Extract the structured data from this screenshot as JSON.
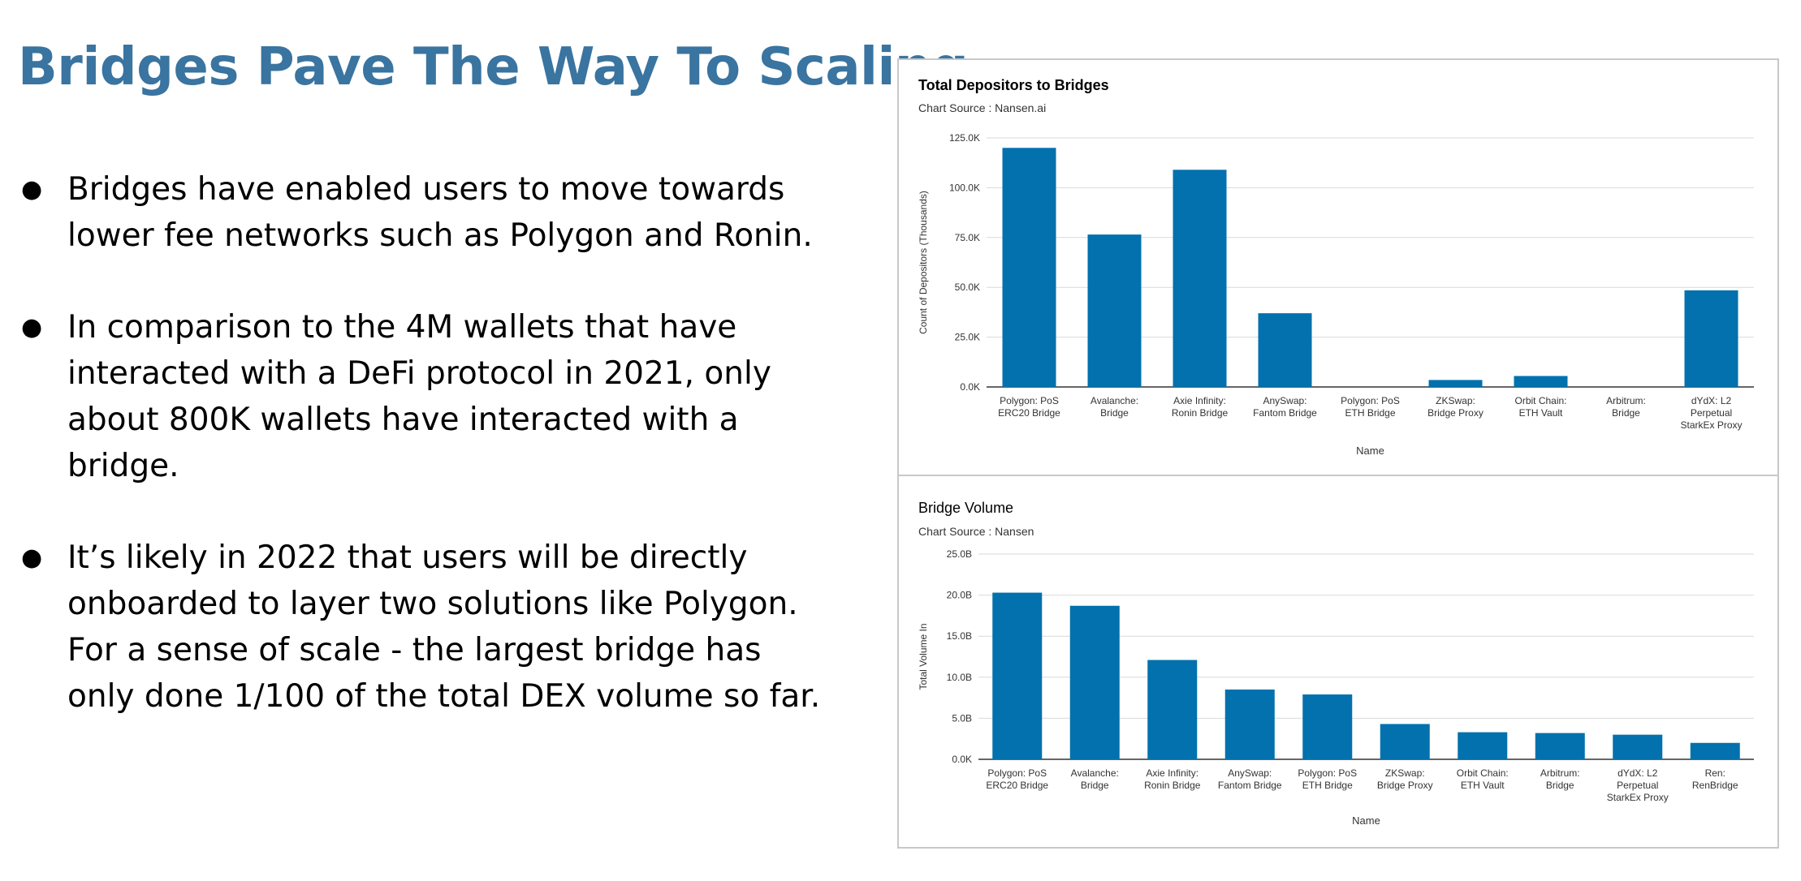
{
  "slide": {
    "title": "Bridges Pave The Way To Scaling",
    "bullets": [
      {
        "lines": [
          "Bridges have enabled users to move towards",
          "lower fee networks such as Polygon and Ronin."
        ]
      },
      {
        "lines": [
          "In comparison to the 4M wallets that have",
          "interacted with a DeFi protocol in 2021, only",
          "about  800K wallets have interacted with a",
          "bridge."
        ]
      },
      {
        "lines": [
          "It’s likely in 2022 that users will be directly",
          "onboarded to layer two solutions like Polygon.",
          "For a sense of scale - the largest bridge has",
          "only done 1/100 of the total DEX volume so far."
        ]
      }
    ],
    "bullet_glyph": "●"
  },
  "colors": {
    "title": "#3a74a0",
    "bar": "#0271ad",
    "grid": "#d9d9d9",
    "axis": "#333333"
  },
  "chart_data": [
    {
      "type": "bar",
      "title": "Total Depositors to Bridges",
      "subtitle": "Chart Source : Nansen.ai",
      "xlabel": "Name",
      "ylabel": "Count of Depositors  (Thousands)",
      "categories": [
        [
          "Polygon: PoS",
          "ERC20 Bridge"
        ],
        [
          "Avalanche:",
          "Bridge"
        ],
        [
          "Axie Infinity:",
          "Ronin Bridge"
        ],
        [
          "AnySwap:",
          "Fantom Bridge"
        ],
        [
          "Polygon: PoS",
          "ETH Bridge"
        ],
        [
          "ZKSwap:",
          "Bridge Proxy"
        ],
        [
          "Orbit Chain:",
          "ETH Vault"
        ],
        [
          "Arbitrum:",
          "Bridge"
        ],
        [
          "dYdX: L2",
          "Perpetual",
          "StarkEx Proxy"
        ]
      ],
      "values": [
        120000,
        76500,
        109000,
        37000,
        0,
        3500,
        5500,
        0,
        48500
      ],
      "ylim": [
        0,
        125000
      ],
      "yticks": [
        "0.0K",
        "25.0K",
        "50.0K",
        "75.0K",
        "100.0K",
        "125.0K"
      ],
      "ytick_values": [
        0,
        25000,
        50000,
        75000,
        100000,
        125000
      ],
      "grid": true,
      "title_bold": true
    },
    {
      "type": "bar",
      "title": "Bridge Volume",
      "subtitle": "Chart Source : Nansen",
      "xlabel": "Name",
      "ylabel": "Total Volume In",
      "categories": [
        [
          "Polygon: PoS",
          "ERC20 Bridge"
        ],
        [
          "Avalanche:",
          "Bridge"
        ],
        [
          "Axie Infinity:",
          "Ronin Bridge"
        ],
        [
          "AnySwap:",
          "Fantom Bridge"
        ],
        [
          "Polygon: PoS",
          "ETH Bridge"
        ],
        [
          "ZKSwap:",
          "Bridge Proxy"
        ],
        [
          "Orbit Chain:",
          "ETH Vault"
        ],
        [
          "Arbitrum:",
          "Bridge"
        ],
        [
          "dYdX: L2",
          "Perpetual",
          "StarkEx Proxy"
        ],
        [
          "Ren:",
          "RenBridge"
        ]
      ],
      "values": [
        20.3,
        18.7,
        12.1,
        8.5,
        7.9,
        4.3,
        3.3,
        3.2,
        3.0,
        2.0
      ],
      "ylim": [
        0,
        25
      ],
      "yticks": [
        "0.0K",
        "5.0B",
        "10.0B",
        "15.0B",
        "20.0B",
        "25.0B"
      ],
      "ytick_values": [
        0,
        5,
        10,
        15,
        20,
        25
      ],
      "grid": true,
      "title_bold": false
    }
  ]
}
